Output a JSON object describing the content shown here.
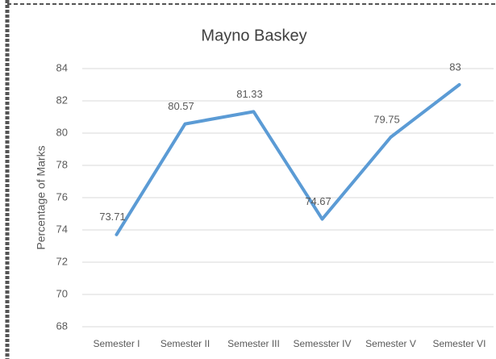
{
  "chart_data": {
    "type": "line",
    "title": "Mayno Baskey",
    "y_label": "Percentage of Marks",
    "categories": [
      "Semester I",
      "Semester II",
      "Semester III",
      "Semesster IV",
      "Semester V",
      "Semester VI"
    ],
    "series": [
      {
        "name": "Mayno Baskey",
        "color": "#5b9bd5",
        "values": [
          73.71,
          80.57,
          81.33,
          74.67,
          79.75,
          83
        ]
      }
    ],
    "ylim": [
      68,
      84
    ],
    "yticks": [
      68,
      70,
      72,
      74,
      76,
      78,
      80,
      82,
      84
    ],
    "grid": true
  }
}
